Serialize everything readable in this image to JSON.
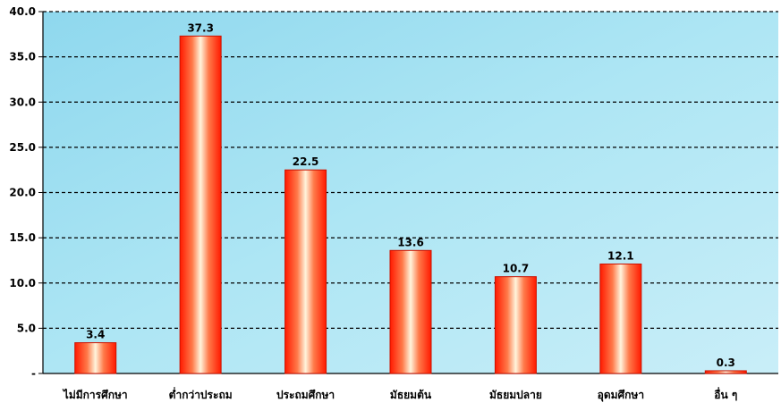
{
  "chart_data": {
    "type": "bar",
    "categories": [
      "ไม่มีการศึกษา",
      "ต่ำกว่าประถม",
      "ประถมศึกษา",
      "มัธยมต้น",
      "มัธยมปลาย",
      "อุดมศึกษา",
      "อื่น ๆ"
    ],
    "values": [
      3.4,
      37.3,
      22.5,
      13.6,
      10.7,
      12.1,
      0.3
    ],
    "value_labels": [
      "3.4",
      "37.3",
      "22.5",
      "13.6",
      "10.7",
      "12.1",
      "0.3"
    ],
    "ylim": [
      0,
      40
    ],
    "yticks": [
      0,
      5,
      10,
      15,
      20,
      25,
      30,
      35,
      40
    ],
    "ytick_labels": [
      "-",
      "5.0",
      "10.0",
      "15.0",
      "20.0",
      "25.0",
      "30.0",
      "35.0",
      "40.0"
    ],
    "grid": true,
    "grid_style": "dashed",
    "bar_color": "#ff1a00",
    "bar_highlight_color": "#fff4dc",
    "background_color": "#aee6f4",
    "xlabel": "",
    "ylabel": "",
    "title": ""
  }
}
